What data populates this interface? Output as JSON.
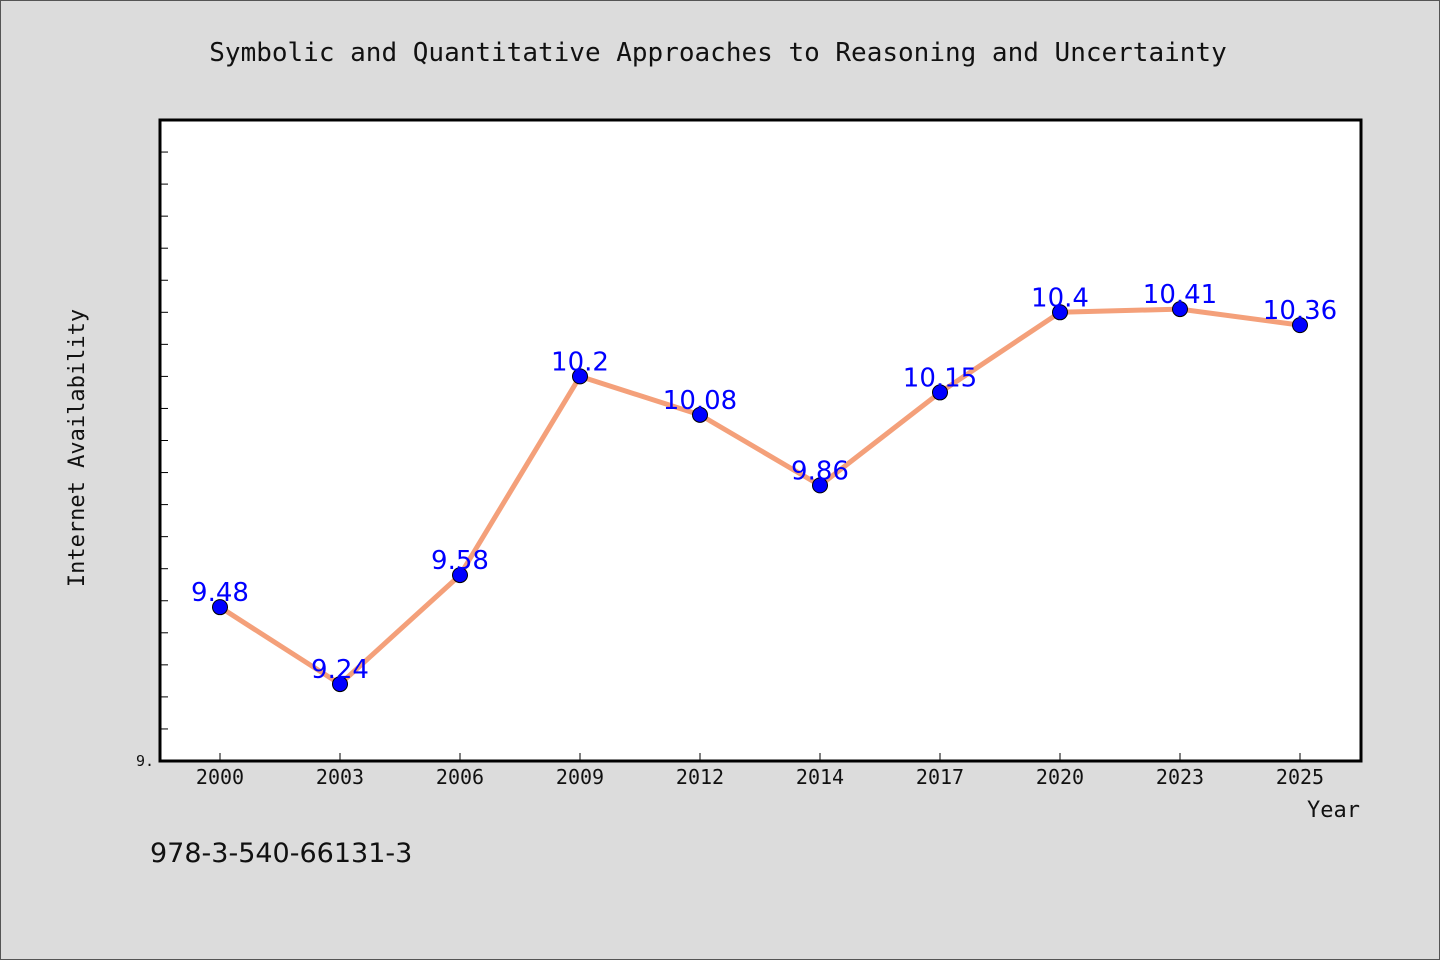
{
  "chart_data": {
    "type": "line",
    "title": "Symbolic and Quantitative Approaches to Reasoning and Uncertainty",
    "xlabel": "Year",
    "ylabel": "Internet Availability",
    "ylim": [
      9.0,
      11.0
    ],
    "ytick_labels": [
      {
        "value": 9.0,
        "label": "9."
      }
    ],
    "grid": false,
    "categories": [
      "2000",
      "2003",
      "2006",
      "2009",
      "2012",
      "2014",
      "2017",
      "2020",
      "2023",
      "2025"
    ],
    "series": [
      {
        "values": [
          9.48,
          9.24,
          9.58,
          10.2,
          10.08,
          9.86,
          10.15,
          10.4,
          10.41,
          10.36
        ],
        "data_labels": [
          "9.48",
          "9.24",
          "9.58",
          "10.2",
          "10.08",
          "9.86",
          "10.15",
          "10.4",
          "10.41",
          "10.36"
        ],
        "line_color": "#f4a07a",
        "marker_color": "#0000ff",
        "label_color": "#0000ff"
      }
    ],
    "annotations": [
      "978-3-540-66131-3"
    ],
    "colors": {
      "background": "#dcdcdc",
      "plot_background": "#ffffff",
      "axis": "#000000"
    }
  }
}
